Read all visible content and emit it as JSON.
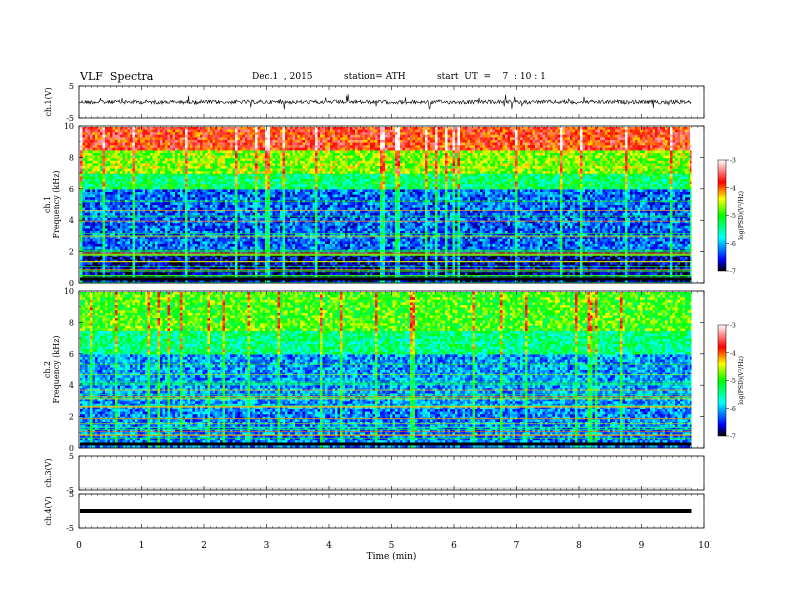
{
  "header": {
    "title": "VLF  Spectra",
    "date": "Dec.1  , 2015",
    "station": "station= ATH",
    "start": "start  UT  =    7  : 10 : 1"
  },
  "chart_data": [
    {
      "type": "line",
      "panel": "ch1-waveform",
      "ylabel": "ch.1(V)",
      "ylim": [
        -5,
        5
      ],
      "yticks": [
        "5",
        "-5"
      ],
      "baseline": 0,
      "description_values": "noisy waveform centered near 0 V"
    },
    {
      "type": "heatmap",
      "panel": "ch1-spectrogram",
      "ylabel": "ch.1\nFrequency  (kHz)",
      "ylabel_lines": [
        "ch.1",
        "Frequency  (kHz)"
      ],
      "ylim": [
        0,
        10
      ],
      "yticks": [
        "0",
        "2",
        "4",
        "6",
        "8",
        "10"
      ],
      "colorbar": {
        "label": "log(PSD)(V²/Hz)",
        "range": [
          -7,
          -3
        ],
        "ticks": [
          "-3",
          "-4",
          "-5",
          "-6",
          "-7"
        ],
        "colors": [
          "#000000",
          "#0000ff",
          "#00ffff",
          "#00ff00",
          "#ffff00",
          "#ff0000",
          "#ffffff"
        ]
      },
      "bands": [
        {
          "f0": 0,
          "f1": 2.0,
          "level": -6.7
        },
        {
          "f0": 2.0,
          "f1": 6.0,
          "level": -6.3
        },
        {
          "f0": 6.0,
          "f1": 7.0,
          "level": -5.3
        },
        {
          "f0": 7.0,
          "f1": 8.5,
          "level": -4.7
        },
        {
          "f0": 8.5,
          "f1": 10,
          "level": -3.8
        }
      ]
    },
    {
      "type": "heatmap",
      "panel": "ch2-spectrogram",
      "ylabel": "ch.2\nFrequency  (kHz)",
      "ylabel_lines": [
        "ch.2",
        "Frequency  (kHz)"
      ],
      "ylim": [
        0,
        10
      ],
      "yticks": [
        "0",
        "2",
        "4",
        "6",
        "8",
        "10"
      ],
      "colorbar": {
        "label": "log(PSD)(V²/Hz)",
        "range": [
          -7,
          -3
        ],
        "ticks": [
          "-3",
          "-4",
          "-5",
          "-6",
          "-7"
        ],
        "colors": [
          "#000000",
          "#0000ff",
          "#00ffff",
          "#00ff00",
          "#ffff00",
          "#ff0000",
          "#ffffff"
        ]
      },
      "bands": [
        {
          "f0": 0,
          "f1": 2.5,
          "level": -6.2
        },
        {
          "f0": 2.5,
          "f1": 6.0,
          "level": -6.1
        },
        {
          "f0": 6.0,
          "f1": 7.5,
          "level": -5.4
        },
        {
          "f0": 7.5,
          "f1": 10,
          "level": -4.9
        }
      ]
    },
    {
      "type": "line",
      "panel": "ch3-waveform",
      "ylabel": "ch.3(V)",
      "ylim": [
        -5,
        5
      ],
      "yticks": [
        "5",
        "-5"
      ],
      "baseline": 0
    },
    {
      "type": "line",
      "panel": "ch4-waveform",
      "ylabel": "ch.4(V)",
      "ylim": [
        -5,
        5
      ],
      "yticks": [
        "5",
        "-5"
      ],
      "baseline": 0
    }
  ],
  "xaxis": {
    "label": "Time  (min)",
    "range": [
      0,
      10
    ],
    "ticks": [
      "0",
      "1",
      "2",
      "3",
      "4",
      "5",
      "6",
      "7",
      "8",
      "9",
      "10"
    ],
    "data_end": 9.8
  }
}
